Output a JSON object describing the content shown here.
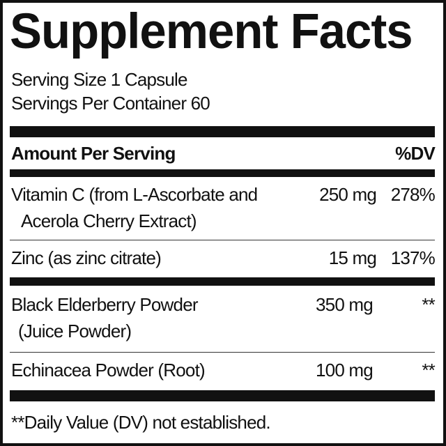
{
  "title": "Supplement Facts",
  "serving_size": "Serving Size 1 Capsule",
  "servings_per_container": "Servings Per Container 60",
  "header": {
    "amount": "Amount Per Serving",
    "dv": "%DV"
  },
  "rows": [
    {
      "name_line1": "Vitamin C (from L-Ascorbate and",
      "name_line2": "Acerola Cherry Extract)",
      "amount": "250 mg",
      "dv": "278%"
    },
    {
      "name_line1": "Zinc (as zinc citrate)",
      "amount": "15 mg",
      "dv": "137%"
    },
    {
      "name_line1": "Black Elderberry Powder",
      "name_line2": "(Juice Powder)",
      "amount": "350 mg",
      "dv": "**"
    },
    {
      "name_line1": "Echinacea Powder (Root)",
      "amount": "100 mg",
      "dv": "**"
    }
  ],
  "footnote": "**Daily Value (DV) not established."
}
